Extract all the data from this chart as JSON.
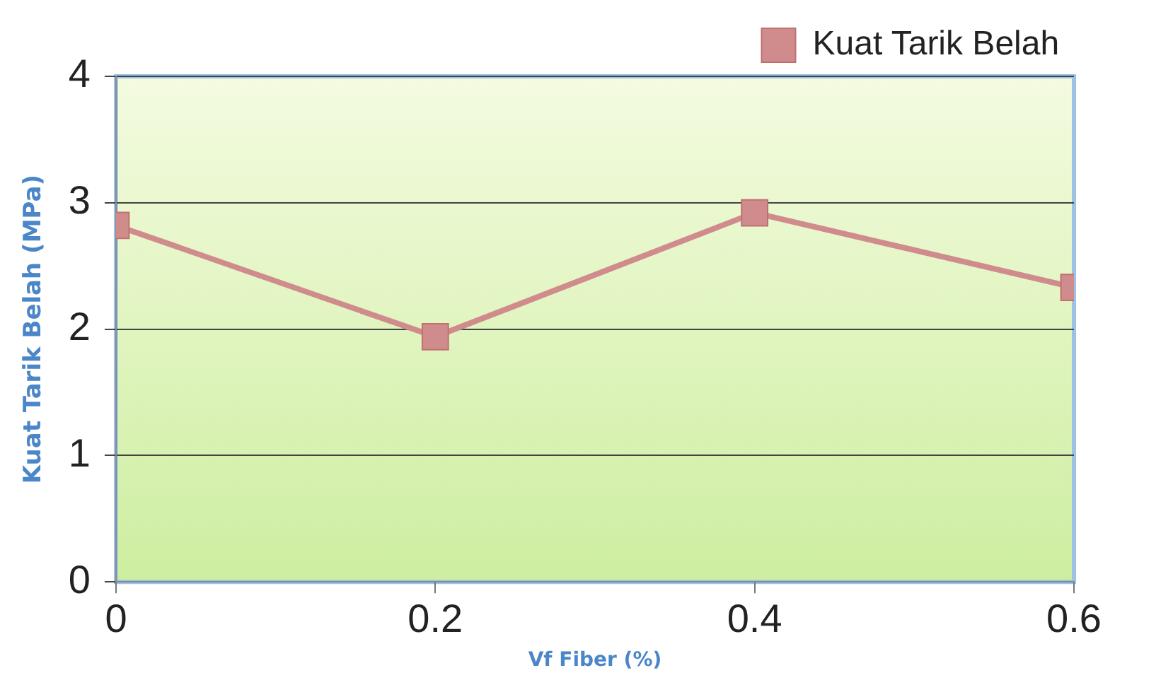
{
  "chart_data": {
    "type": "line",
    "xlabel": "Vf Fiber (%)",
    "ylabel": "Kuat Tarik Belah (MPa)",
    "x": [
      0,
      0.2,
      0.4,
      0.6
    ],
    "series": [
      {
        "name": "Kuat Tarik Belah",
        "color": "#d08c8c",
        "values": [
          2.82,
          1.94,
          2.92,
          2.33
        ]
      }
    ],
    "xlim": [
      0,
      0.6
    ],
    "xticks": [
      0,
      0.2,
      0.4,
      0.6
    ],
    "ylim": [
      0,
      4
    ],
    "yticks": [
      0,
      1,
      2,
      3,
      4
    ],
    "grid": "y",
    "legend": "top right",
    "marker": "square",
    "line_style": "solid"
  }
}
